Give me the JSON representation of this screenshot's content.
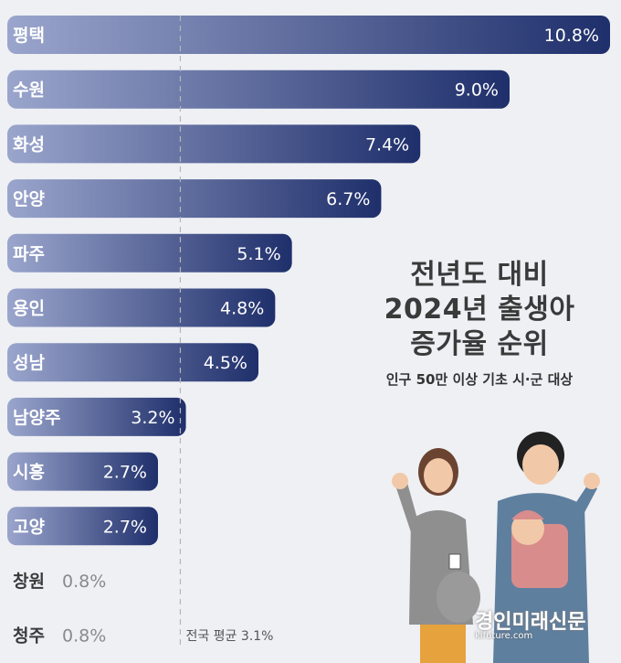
{
  "chart_data": {
    "type": "bar",
    "orientation": "horizontal",
    "categories": [
      "평택",
      "수원",
      "화성",
      "안양",
      "파주",
      "용인",
      "성남",
      "남양주",
      "시흥",
      "고양",
      "창원",
      "청주"
    ],
    "values": [
      10.8,
      9.0,
      7.4,
      6.7,
      5.1,
      4.8,
      4.5,
      3.2,
      2.7,
      2.7,
      0.8,
      0.8
    ],
    "value_labels": [
      "10.8%",
      "9.0%",
      "7.4%",
      "6.7%",
      "5.1%",
      "4.8%",
      "4.5%",
      "3.2%",
      "2.7%",
      "2.7%",
      "0.8%",
      "0.8%"
    ],
    "xlim": [
      0,
      10.8
    ],
    "reference_line": {
      "value": 3.1,
      "label": "전국 평균 3.1%"
    },
    "title_lines": [
      "전년도 대비",
      "2024년 출생아",
      "증가율 순위"
    ],
    "subtitle": "인구 50만 이상 기초 시·군 대상",
    "grid": false,
    "colors": {
      "bar_start": "#9aa5cc",
      "bar_end": "#1f2f6b",
      "label_outside": "#8a8a8a",
      "ref_line": "#b5b5b5"
    }
  },
  "watermark": {
    "main": "경인미래신문",
    "sub": "kifuture.com"
  }
}
